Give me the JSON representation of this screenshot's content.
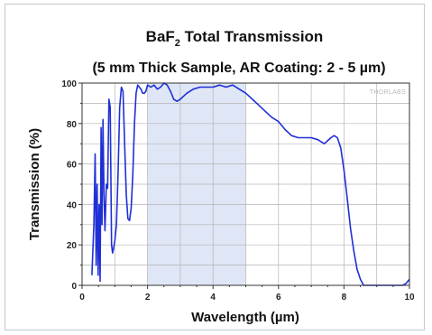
{
  "chart_data": {
    "type": "line",
    "title": {
      "line1_main": "BaF",
      "line1_sub": "2",
      "line1_rest": " Total Transmission",
      "line2": "(5 mm Thick Sample, AR Coating: 2 - 5 µm)"
    },
    "xlabel": "Wavelength (µm)",
    "ylabel": "Transmission (%)",
    "xlim": [
      0,
      10
    ],
    "ylim": [
      0,
      100
    ],
    "x_ticks": [
      "0",
      "2",
      "4",
      "6",
      "8",
      "10"
    ],
    "y_ticks": [
      "0",
      "20",
      "40",
      "60",
      "80",
      "100"
    ],
    "grid": true,
    "legend": "none",
    "watermark": "THORLABS",
    "shaded_region": {
      "x": [
        2,
        5
      ],
      "color": "#dfe6f5"
    },
    "line_color": "#1f2fd6",
    "series": [
      {
        "x": [
          0.3,
          0.36,
          0.4,
          0.43,
          0.46,
          0.49,
          0.52,
          0.55,
          0.58,
          0.61,
          0.64,
          0.67,
          0.7,
          0.74,
          0.78,
          0.82,
          0.86,
          0.9,
          0.93,
          0.96,
          1.0,
          1.05,
          1.1,
          1.15,
          1.2,
          1.25,
          1.3,
          1.35,
          1.4,
          1.45,
          1.5,
          1.55,
          1.6,
          1.65,
          1.7,
          1.75,
          1.8,
          1.85,
          1.9,
          1.95,
          2.0,
          2.1,
          2.2,
          2.3,
          2.4,
          2.5,
          2.6,
          2.7,
          2.8,
          2.9,
          3.0,
          3.2,
          3.4,
          3.6,
          3.8,
          4.0,
          4.2,
          4.4,
          4.6,
          4.8,
          5.0,
          5.2,
          5.4,
          5.6,
          5.8,
          6.0,
          6.2,
          6.4,
          6.6,
          6.8,
          7.0,
          7.2,
          7.4,
          7.6,
          7.7,
          7.8,
          7.9,
          8.0,
          8.1,
          8.2,
          8.3,
          8.4,
          8.5,
          8.6,
          8.7,
          8.8,
          8.9,
          9.0,
          9.1,
          9.2,
          9.4,
          9.6,
          9.8,
          9.9,
          10.0
        ],
        "y": [
          5,
          30,
          65,
          10,
          50,
          5,
          40,
          2,
          78,
          30,
          82,
          45,
          27,
          50,
          48,
          92,
          88,
          20,
          16,
          18,
          22,
          30,
          55,
          88,
          98,
          96,
          70,
          45,
          33,
          32,
          38,
          55,
          80,
          95,
          99,
          98,
          97,
          95,
          95,
          96,
          99,
          98,
          99,
          97,
          98,
          100,
          99,
          96,
          92,
          91,
          92,
          95,
          97,
          98,
          98,
          98,
          99,
          98,
          99,
          97,
          95,
          92,
          89,
          86,
          83,
          81,
          77,
          74,
          73,
          73,
          73,
          72,
          70,
          73,
          74,
          73,
          68,
          57,
          43,
          28,
          17,
          8,
          3,
          0,
          0,
          0,
          0,
          0,
          0,
          0,
          0,
          0,
          0,
          1,
          3
        ]
      }
    ]
  }
}
